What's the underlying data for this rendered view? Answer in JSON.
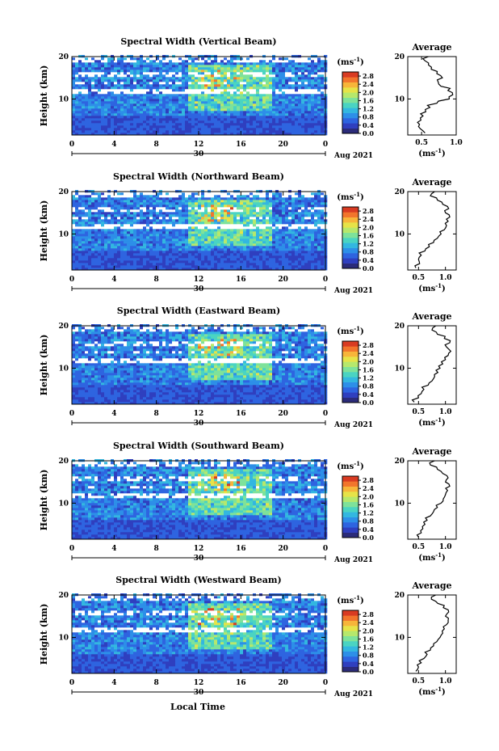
{
  "x_axis_label": "Local Time",
  "date_label": "Aug 2021",
  "colorbar_unit": "(ms",
  "unit_exponent": "-1",
  "profile_title": "Average",
  "profile_xlabel": "(ms",
  "colors": {
    "cmap": [
      "#2b2b7a",
      "#2f3fbf",
      "#2e64e0",
      "#2d8fe8",
      "#33b7e0",
      "#4ad4c2",
      "#7ee29a",
      "#b6e86c",
      "#e6e348",
      "#f7b53a",
      "#f2752c",
      "#d93b22"
    ],
    "gap": "#ffffff"
  },
  "chart_data": [
    {
      "type": "heatmap",
      "title": "Spectral Width (Vertical Beam)",
      "ylabel": "Height (km)",
      "xlabel": "Local Time",
      "x_ticks": [
        "0",
        "4",
        "8",
        "12",
        "16",
        "20",
        "0"
      ],
      "x_range": [
        0,
        24
      ],
      "y_ticks": [
        "10",
        "20"
      ],
      "y_range": [
        1.5,
        20
      ],
      "day_label": "30",
      "colorbar": {
        "unit": "(ms-1)",
        "ticks": [
          "0.0",
          "0.4",
          "0.8",
          "1.2",
          "1.6",
          "2.0",
          "2.4",
          "2.8"
        ],
        "range": [
          0,
          3.0
        ]
      },
      "profile": {
        "title": "Average",
        "xlabel": "(ms-1)",
        "x_ticks": [
          "0.5",
          "1.0"
        ],
        "x_range": [
          0.3,
          1.0
        ],
        "y_ticks": [
          "10",
          "20"
        ],
        "heights": [
          2,
          3,
          4,
          5,
          6,
          7,
          8,
          9,
          10,
          11,
          12,
          13,
          14,
          15,
          16,
          17,
          18,
          19,
          20
        ],
        "values": [
          0.55,
          0.48,
          0.47,
          0.49,
          0.52,
          0.56,
          0.62,
          0.72,
          0.9,
          0.95,
          0.88,
          0.78,
          0.74,
          0.8,
          0.72,
          0.64,
          0.6,
          0.55,
          0.6
        ]
      }
    },
    {
      "type": "heatmap",
      "title": "Spectral Width (Northward Beam)",
      "ylabel": "Height (km)",
      "xlabel": "Local Time",
      "x_ticks": [
        "0",
        "4",
        "8",
        "12",
        "16",
        "20",
        "0"
      ],
      "x_range": [
        0,
        24
      ],
      "y_ticks": [
        "10",
        "20"
      ],
      "y_range": [
        1.5,
        20
      ],
      "day_label": "30",
      "colorbar": {
        "unit": "(ms-1)",
        "ticks": [
          "0.0",
          "0.4",
          "0.8",
          "1.2",
          "1.6",
          "2.0",
          "2.4",
          "2.8"
        ],
        "range": [
          0,
          3.0
        ]
      },
      "profile": {
        "title": "Average",
        "xlabel": "(ms-1)",
        "x_ticks": [
          "0.5",
          "1.0"
        ],
        "x_range": [
          0.3,
          1.2
        ],
        "y_ticks": [
          "10",
          "20"
        ],
        "heights": [
          2,
          3,
          4,
          5,
          6,
          7,
          8,
          9,
          10,
          11,
          12,
          13,
          14,
          15,
          16,
          17,
          18,
          19,
          20
        ],
        "values": [
          0.45,
          0.52,
          0.5,
          0.55,
          0.62,
          0.7,
          0.78,
          0.85,
          0.92,
          0.98,
          1.02,
          1.05,
          1.08,
          1.0,
          1.06,
          0.95,
          0.85,
          0.72,
          0.8
        ]
      }
    },
    {
      "type": "heatmap",
      "title": "Spectral Width (Eastward Beam)",
      "ylabel": "Height (km)",
      "xlabel": "Local Time",
      "x_ticks": [
        "0",
        "4",
        "8",
        "12",
        "16",
        "20",
        "0"
      ],
      "x_range": [
        0,
        24
      ],
      "y_ticks": [
        "10",
        "20"
      ],
      "y_range": [
        1.5,
        20
      ],
      "day_label": "30",
      "colorbar": {
        "unit": "(ms-1)",
        "ticks": [
          "0.0",
          "0.4",
          "0.8",
          "1.2",
          "1.6",
          "2.0",
          "2.4",
          "2.8"
        ],
        "range": [
          0,
          3.0
        ]
      },
      "profile": {
        "title": "Average",
        "xlabel": "(ms-1)",
        "x_ticks": [
          "0.5",
          "1.0"
        ],
        "x_range": [
          0.3,
          1.2
        ],
        "y_ticks": [
          "10",
          "20"
        ],
        "heights": [
          2,
          3,
          4,
          5,
          6,
          7,
          8,
          9,
          10,
          11,
          12,
          13,
          14,
          15,
          16,
          17,
          18,
          19,
          20
        ],
        "values": [
          0.42,
          0.5,
          0.55,
          0.6,
          0.68,
          0.75,
          0.8,
          0.86,
          0.9,
          0.95,
          1.0,
          1.05,
          1.1,
          1.02,
          1.08,
          0.98,
          0.85,
          0.75,
          0.82
        ]
      }
    },
    {
      "type": "heatmap",
      "title": "Spectral Width (Southward Beam)",
      "ylabel": "Height (km)",
      "xlabel": "Local Time",
      "x_ticks": [
        "0",
        "4",
        "8",
        "12",
        "16",
        "20",
        "0"
      ],
      "x_range": [
        0,
        24
      ],
      "y_ticks": [
        "10",
        "20"
      ],
      "y_range": [
        1.5,
        20
      ],
      "day_label": "30",
      "colorbar": {
        "unit": "(ms-1)",
        "ticks": [
          "0.0",
          "0.4",
          "0.8",
          "1.2",
          "1.6",
          "2.0",
          "2.4",
          "2.8"
        ],
        "range": [
          0,
          3.0
        ]
      },
      "profile": {
        "title": "Average",
        "xlabel": "(ms-1)",
        "x_ticks": [
          "0.5",
          "1.0"
        ],
        "x_range": [
          0.3,
          1.2
        ],
        "y_ticks": [
          "10",
          "20"
        ],
        "heights": [
          2,
          3,
          4,
          5,
          6,
          7,
          8,
          9,
          10,
          11,
          12,
          13,
          14,
          15,
          16,
          17,
          18,
          19,
          20
        ],
        "values": [
          0.5,
          0.55,
          0.58,
          0.62,
          0.66,
          0.72,
          0.78,
          0.85,
          0.92,
          0.96,
          1.0,
          1.04,
          1.08,
          1.0,
          1.05,
          0.95,
          0.85,
          0.72,
          0.8
        ]
      }
    },
    {
      "type": "heatmap",
      "title": "Spectral Width (Westward Beam)",
      "ylabel": "Height (km)",
      "xlabel": "Local Time",
      "x_ticks": [
        "0",
        "4",
        "8",
        "12",
        "16",
        "20",
        "0"
      ],
      "x_range": [
        0,
        24
      ],
      "y_ticks": [
        "10",
        "20"
      ],
      "y_range": [
        1.5,
        20
      ],
      "day_label": "30",
      "colorbar": {
        "unit": "(ms-1)",
        "ticks": [
          "0.0",
          "0.4",
          "0.8",
          "1.2",
          "1.6",
          "2.0",
          "2.4",
          "2.8"
        ],
        "range": [
          0,
          3.0
        ]
      },
      "profile": {
        "title": "Average",
        "xlabel": "(ms-1)",
        "x_ticks": [
          "0.5",
          "1.0"
        ],
        "x_range": [
          0.3,
          1.2
        ],
        "y_ticks": [
          "10",
          "20"
        ],
        "heights": [
          2,
          3,
          4,
          5,
          6,
          7,
          8,
          9,
          10,
          11,
          12,
          13,
          14,
          15,
          16,
          17,
          18,
          19,
          20
        ],
        "values": [
          0.45,
          0.5,
          0.55,
          0.6,
          0.66,
          0.72,
          0.78,
          0.84,
          0.9,
          0.95,
          0.98,
          1.02,
          1.05,
          1.0,
          1.06,
          0.96,
          0.86,
          0.74,
          0.82
        ]
      }
    }
  ]
}
